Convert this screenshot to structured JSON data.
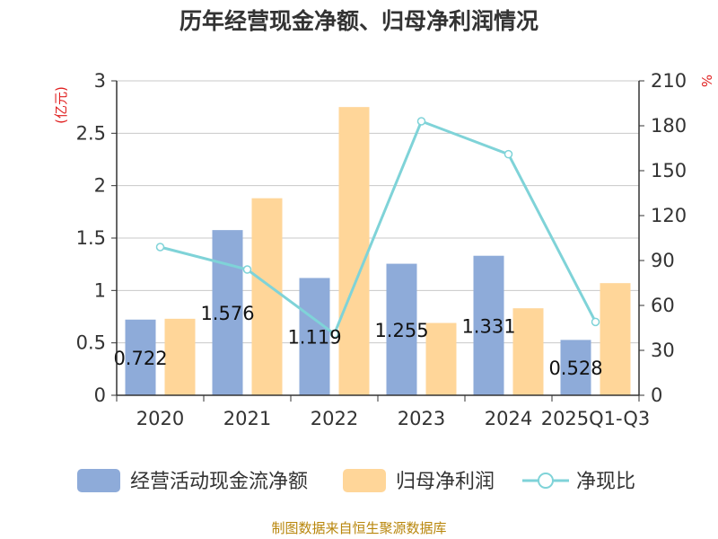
{
  "chart_data": {
    "type": "bar+line",
    "title": "历年经营现金净额、归母净利润情况",
    "categories": [
      "2020",
      "2021",
      "2022",
      "2023",
      "2024",
      "2025Q1-Q3"
    ],
    "y_left": {
      "label": "(亿元)",
      "min": 0,
      "max": 3,
      "ticks": [
        "0",
        "0.5",
        "1",
        "1.5",
        "2",
        "2.5",
        "3"
      ]
    },
    "y_right": {
      "label": "%",
      "min": 0,
      "max": 210,
      "ticks": [
        "0",
        "30",
        "60",
        "90",
        "120",
        "150",
        "180",
        "210"
      ]
    },
    "series": [
      {
        "name": "经营活动现金流净额",
        "type": "bar",
        "axis": "left",
        "color": "#8eabd9",
        "values": [
          0.722,
          1.576,
          1.119,
          1.255,
          1.331,
          0.528
        ],
        "labels": [
          "0.722",
          "1.576",
          "1.119",
          "1.255",
          "1.331",
          "0.528"
        ]
      },
      {
        "name": "归母净利润",
        "type": "bar",
        "axis": "left",
        "color": "#ffd699",
        "values": [
          0.73,
          1.88,
          2.75,
          0.69,
          0.83,
          1.07
        ]
      },
      {
        "name": "净现比",
        "type": "line",
        "axis": "right",
        "color": "#7fd3d8",
        "values": [
          99,
          84,
          41,
          183,
          161,
          49
        ]
      }
    ]
  },
  "source": "制图数据来自恒生聚源数据库"
}
